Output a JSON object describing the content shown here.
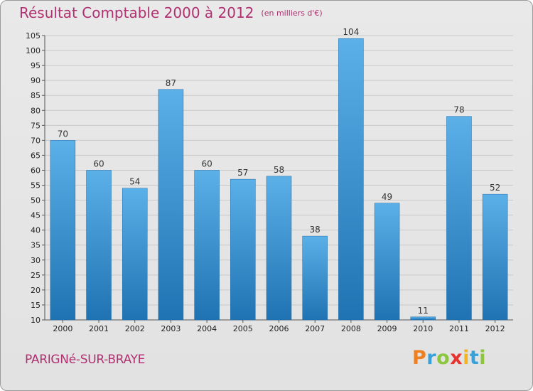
{
  "title": "Résultat Comptable 2000 à 2012",
  "subtitle": "(en milliers d'€)",
  "commune": "PARIGNé-SUR-BRAYE",
  "logo": {
    "letters": [
      "P",
      "r",
      "o",
      "x",
      "i",
      "t",
      "i"
    ],
    "colors": [
      "#f07f1e",
      "#3aa0d8",
      "#8cc63e",
      "#e8322d",
      "#f2b51d",
      "#3aa0d8",
      "#8cc63e"
    ]
  },
  "colors": {
    "bar_top": "#5bb0e8",
    "bar_bottom": "#1f73b2",
    "text_accent": "#b03070"
  },
  "chart_data": {
    "type": "bar",
    "categories": [
      "2000",
      "2001",
      "2002",
      "2003",
      "2004",
      "2005",
      "2006",
      "2007",
      "2008",
      "2009",
      "2010",
      "2011",
      "2012"
    ],
    "values": [
      70,
      60,
      54,
      87,
      60,
      57,
      58,
      38,
      104,
      49,
      11,
      78,
      52
    ],
    "title": "Résultat Comptable 2000 à 2012",
    "ylim": [
      10,
      105
    ],
    "yticks": [
      10,
      15,
      20,
      25,
      30,
      35,
      40,
      45,
      50,
      55,
      60,
      65,
      70,
      75,
      80,
      85,
      90,
      95,
      100,
      105
    ],
    "grid": true
  }
}
